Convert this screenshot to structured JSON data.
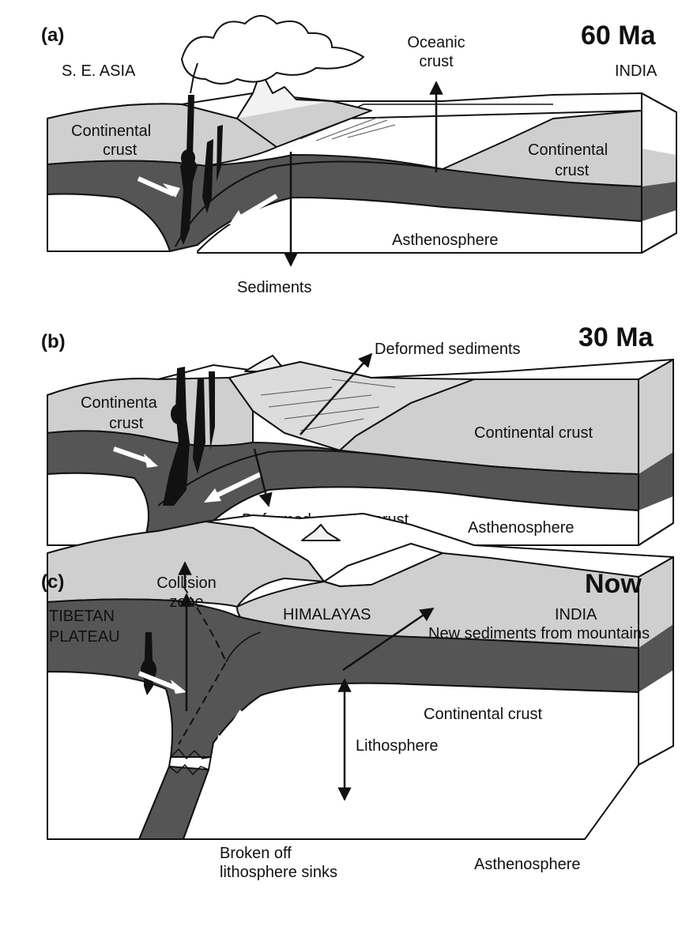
{
  "panels": [
    {
      "id": "a",
      "letter": "(a)",
      "age": "60 Ma",
      "labels": {
        "left_region": "S. E. ASIA",
        "right_region": "INDIA",
        "oceanic_crust_1": "Oceanic",
        "oceanic_crust_2": "crust",
        "left_crust_1": "Continental",
        "left_crust_2": "crust",
        "right_crust_1": "Continental",
        "right_crust_2": "crust",
        "asthenosphere": "Asthenosphere",
        "sediments": "Sediments"
      }
    },
    {
      "id": "b",
      "letter": "(b)",
      "age": "30 Ma",
      "labels": {
        "deformed_sediments": "Deformed sediments",
        "left_crust_1": "Continenta",
        "left_crust_2": "crust",
        "right_crust": "Continental crust",
        "deformed_oceanic": "Deformed oceanic crust",
        "asthenosphere": "Asthenosphere"
      }
    },
    {
      "id": "c",
      "letter": "(c)",
      "age": "Now",
      "labels": {
        "collision_1": "Collision",
        "collision_2": "zone",
        "tibet_1": "TIBETAN",
        "tibet_2": "PLATEAU",
        "himalayas": "HIMALAYAS",
        "india": "INDIA",
        "new_sediments": "New sediments from mountains",
        "crust": "Continental crust",
        "lithosphere": "Lithosphere",
        "broken_1": "Broken off",
        "broken_2": "lithosphere sinks",
        "asthenosphere": "Asthenosphere"
      }
    }
  ],
  "colors": {
    "crust": "#cfcfcf",
    "lithosphere": "#555555",
    "asthenosphere": "#ffffff",
    "magma": "#111111",
    "outline": "#111111"
  }
}
